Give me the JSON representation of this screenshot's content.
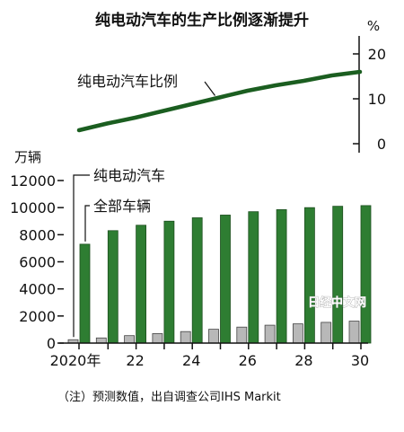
{
  "chart_data": {
    "type": "bar+line",
    "title": "纯电动汽车的生产比例逐渐提升",
    "note": "（注）预测数值，出自调查公司IHS Markit",
    "x": [
      2020,
      2021,
      2022,
      2023,
      2024,
      2025,
      2026,
      2027,
      2028,
      2029,
      2030
    ],
    "x_tick_labels": [
      "2020年",
      "22",
      "24",
      "26",
      "28",
      "30"
    ],
    "bar_axis": {
      "unit": "万辆",
      "ylim": [
        0,
        12000
      ],
      "ticks": [
        0,
        2000,
        4000,
        6000,
        8000,
        10000,
        12000
      ]
    },
    "line_axis": {
      "unit": "%",
      "ylim": [
        -2,
        24
      ],
      "ticks": [
        0,
        10,
        20
      ]
    },
    "series": [
      {
        "name": "纯电动汽车",
        "type": "bar",
        "color": "#b8b8b8",
        "values": [
          250,
          380,
          550,
          700,
          850,
          1020,
          1180,
          1320,
          1420,
          1530,
          1620
        ]
      },
      {
        "name": "全部车辆",
        "type": "bar",
        "color": "#2e7d32",
        "values": [
          7300,
          8300,
          8700,
          9000,
          9250,
          9450,
          9700,
          9850,
          10000,
          10100,
          10150
        ]
      },
      {
        "name": "纯电动汽车比例",
        "type": "line",
        "color": "#1b5e20",
        "values": [
          3.0,
          4.5,
          5.8,
          7.3,
          8.8,
          10.3,
          11.8,
          13.0,
          14.0,
          15.2,
          16.0
        ]
      }
    ],
    "watermark": "日经中文网"
  }
}
